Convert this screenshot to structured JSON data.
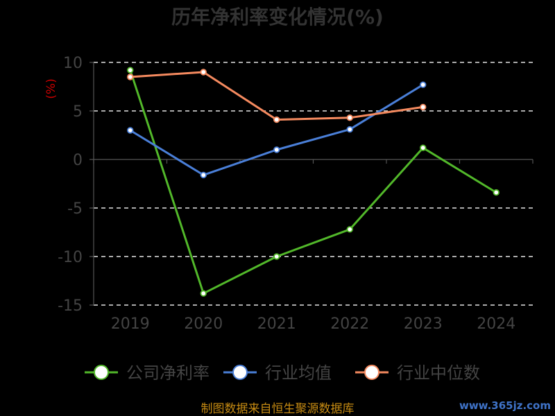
{
  "chart_data": {
    "type": "line",
    "title": "历年净利率变化情况(%)",
    "ylabel": "(%)",
    "xlabel": "",
    "categories": [
      "2019",
      "2020",
      "2021",
      "2022",
      "2023",
      "2024"
    ],
    "ylim": [
      -15,
      10
    ],
    "yticks": [
      10,
      5,
      0,
      -5,
      -10,
      -15
    ],
    "grid": true,
    "legend_position": "bottom",
    "series": [
      {
        "name": "公司净利率",
        "color": "#52b82a",
        "values": [
          9.2,
          -13.8,
          -10.0,
          -7.2,
          1.2,
          -3.4
        ]
      },
      {
        "name": "行业均值",
        "color": "#4a7fd8",
        "values": [
          3.0,
          -1.6,
          1.0,
          3.1,
          7.7,
          null
        ]
      },
      {
        "name": "行业中位数",
        "color": "#f58a5f",
        "values": [
          8.5,
          9.0,
          4.1,
          4.3,
          5.4,
          null
        ]
      }
    ]
  },
  "source": "制图数据来自恒生聚源数据库",
  "watermark": "www.365jz.com"
}
